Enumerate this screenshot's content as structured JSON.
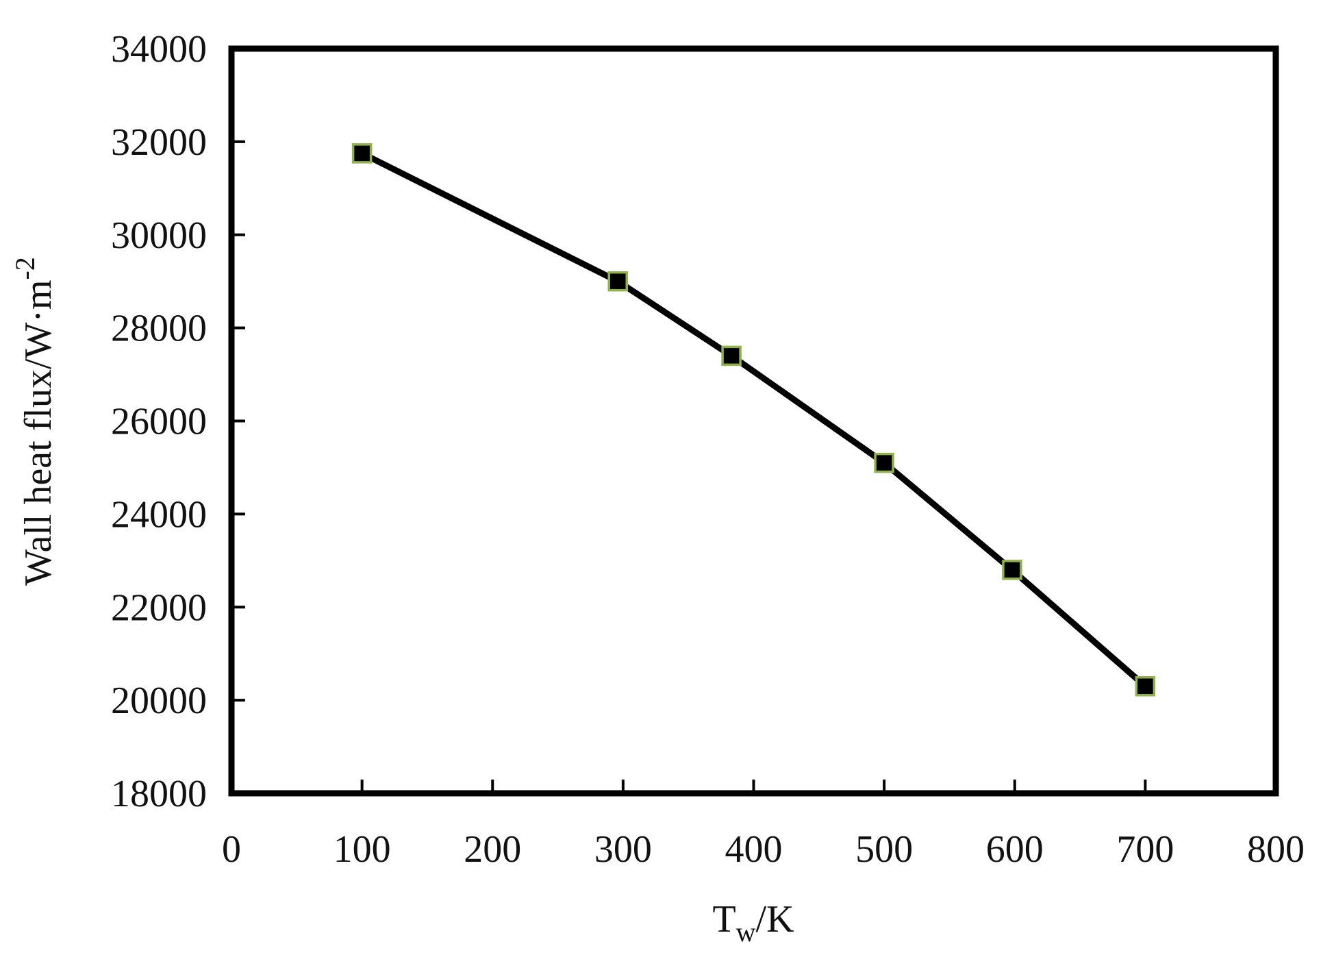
{
  "chart_data": {
    "type": "line",
    "title": "",
    "xlabel": {
      "main": "T",
      "sub": "w",
      "rest": "/K"
    },
    "ylabel": {
      "main": "Wall heat flux/W·m",
      "sup": "-2"
    },
    "xlim": [
      0,
      800
    ],
    "ylim": [
      18000,
      34000
    ],
    "xticks": [
      0,
      100,
      200,
      300,
      400,
      500,
      600,
      700,
      800
    ],
    "yticks": [
      18000,
      20000,
      22000,
      24000,
      26000,
      28000,
      30000,
      32000,
      34000
    ],
    "grid": false,
    "legend": "none",
    "series": [
      {
        "x": [
          100,
          296,
          383,
          500,
          598,
          700
        ],
        "y": [
          31750,
          29000,
          27400,
          25100,
          22800,
          20300
        ]
      }
    ],
    "colors": {
      "line": "#000000",
      "marker_fill": "#000000",
      "marker_edge": "#8fb34a"
    }
  }
}
